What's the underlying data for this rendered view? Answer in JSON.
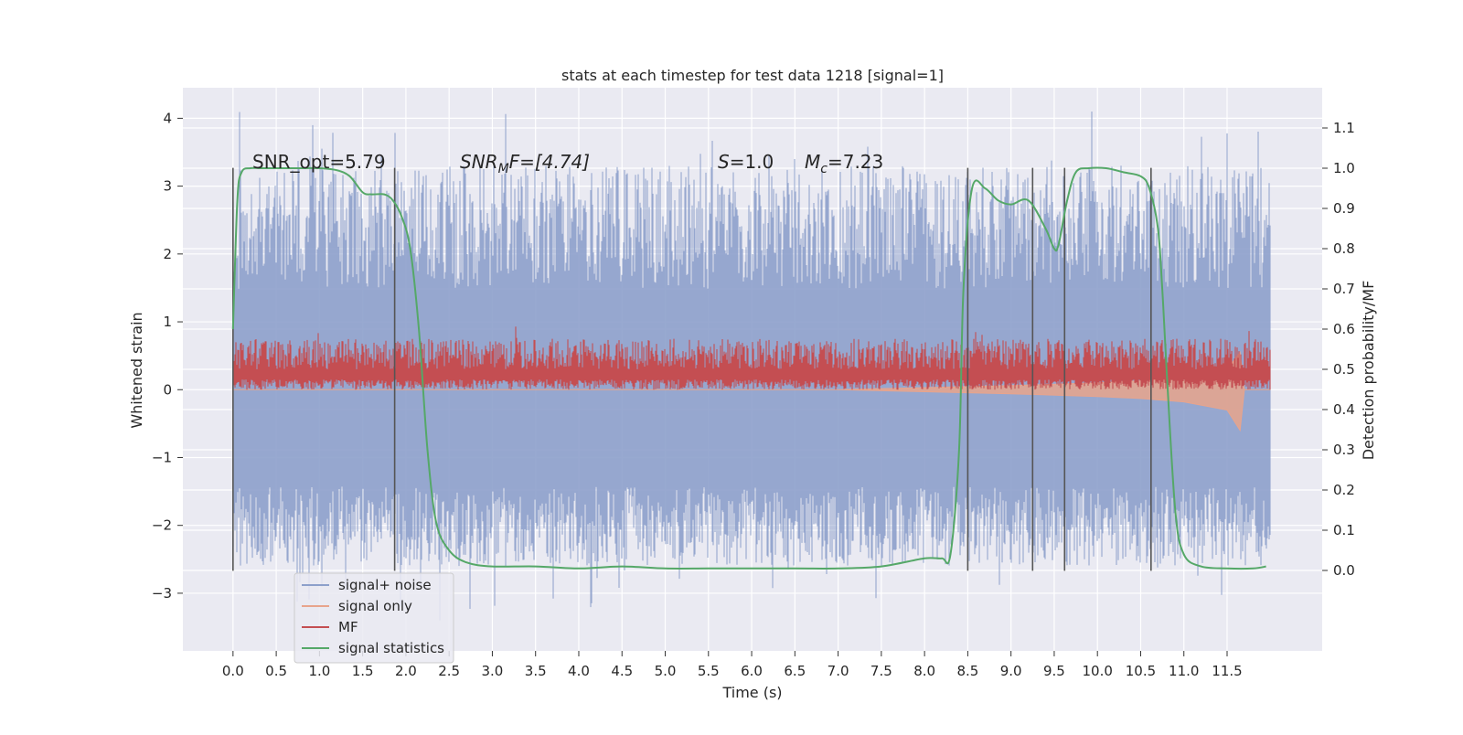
{
  "chart_data": {
    "type": "line",
    "title": "stats at each timestep for test data 1218 [signal=1]",
    "xlabel": "Time (s)",
    "ylabel_left": "Whitened strain",
    "ylabel_right": "Detection probability/MF",
    "x_ticks": [
      0.0,
      0.5,
      1.0,
      1.5,
      2.0,
      2.5,
      3.0,
      3.5,
      4.0,
      4.5,
      5.0,
      5.5,
      6.0,
      6.5,
      7.0,
      7.5,
      8.0,
      8.5,
      9.0,
      9.5,
      10.0,
      10.5,
      11.0,
      11.5
    ],
    "x_tick_labels": [
      "0.0",
      "0.5",
      "1.0",
      "1.5",
      "2.0",
      "2.5",
      "3.0",
      "3.5",
      "4.0",
      "4.5",
      "5.0",
      "5.5",
      "6.0",
      "6.5",
      "7.0",
      "7.5",
      "8.0",
      "8.5",
      "9.0",
      "9.5",
      "10.0",
      "10.5",
      "11.0",
      "11.5"
    ],
    "xlim": [
      -0.58,
      12.6
    ],
    "y_left_ticks": [
      -3,
      -2,
      -1,
      0,
      1,
      2,
      3,
      4
    ],
    "y_left_tick_labels": [
      "−3",
      "−2",
      "−1",
      "0",
      "1",
      "2",
      "3",
      "4"
    ],
    "ylim_left": [
      -3.85,
      4.45
    ],
    "y_right_ticks": [
      0.0,
      0.1,
      0.2,
      0.3,
      0.4,
      0.5,
      0.6,
      0.7,
      0.8,
      0.9,
      1.0,
      1.1
    ],
    "y_right_tick_labels": [
      "0.0",
      "0.1",
      "0.2",
      "0.3",
      "0.4",
      "0.5",
      "0.6",
      "0.7",
      "0.8",
      "0.9",
      "1.0",
      "1.1"
    ],
    "ylim_right": [
      -0.2,
      1.2
    ],
    "grid": true,
    "legend_position": "lower-left",
    "series": [
      {
        "name": "signal+ noise",
        "color": "#8da0cb",
        "axis": "left",
        "x_range": [
          0.0,
          12.0
        ],
        "approx_envelope": [
          -2.6,
          3.3
        ],
        "approx_max": 4.1,
        "approx_min": -3.5
      },
      {
        "name": "signal only",
        "color": "#e8a48c",
        "axis": "left",
        "x": [
          0.0,
          7.0,
          8.0,
          9.0,
          10.0,
          10.5,
          11.0,
          11.5,
          11.65,
          11.7,
          12.0
        ],
        "lower": [
          0.0,
          0.0,
          -0.03,
          -0.06,
          -0.1,
          -0.13,
          -0.18,
          -0.3,
          -0.6,
          0.0,
          0.0
        ],
        "upper": [
          0.0,
          0.0,
          0.03,
          0.06,
          0.1,
          0.13,
          0.18,
          0.3,
          0.55,
          0.0,
          0.0
        ]
      },
      {
        "name": "MF",
        "color": "#c44e52",
        "axis": "left",
        "x_range": [
          0.0,
          12.0
        ],
        "approx_band": [
          0.0,
          0.75
        ],
        "approx_max": 1.0
      },
      {
        "name": "signal statistics",
        "color": "#55a868",
        "axis": "right",
        "x": [
          0.0,
          0.05,
          0.1,
          0.2,
          0.3,
          0.5,
          0.8,
          1.0,
          1.2,
          1.35,
          1.5,
          1.6,
          1.75,
          1.85,
          1.95,
          2.05,
          2.15,
          2.25,
          2.35,
          2.5,
          2.7,
          3.0,
          3.5,
          4.0,
          4.5,
          5.0,
          5.5,
          6.0,
          6.5,
          7.0,
          7.5,
          8.0,
          8.2,
          8.3,
          8.4,
          8.45,
          8.55,
          8.7,
          8.85,
          9.0,
          9.2,
          9.4,
          9.5,
          9.55,
          9.65,
          9.75,
          9.9,
          10.1,
          10.3,
          10.5,
          10.6,
          10.7,
          10.75,
          10.8,
          10.9,
          11.0,
          11.2,
          11.5,
          11.8,
          11.95
        ],
        "values": [
          0.6,
          0.92,
          0.99,
          1.0,
          1.0,
          1.0,
          1.0,
          1.0,
          0.995,
          0.98,
          0.94,
          0.935,
          0.935,
          0.92,
          0.88,
          0.8,
          0.6,
          0.3,
          0.12,
          0.05,
          0.02,
          0.01,
          0.01,
          0.005,
          0.01,
          0.005,
          0.005,
          0.005,
          0.005,
          0.005,
          0.01,
          0.03,
          0.03,
          0.04,
          0.3,
          0.7,
          0.95,
          0.95,
          0.92,
          0.91,
          0.92,
          0.85,
          0.8,
          0.81,
          0.92,
          0.99,
          1.0,
          1.0,
          0.99,
          0.98,
          0.95,
          0.85,
          0.7,
          0.5,
          0.15,
          0.04,
          0.01,
          0.005,
          0.005,
          0.01
        ]
      }
    ],
    "vlines": [
      0.0,
      1.87,
      8.5,
      9.25,
      9.62,
      10.62
    ],
    "annotations": {
      "snr_opt": "SNR_opt=5.79",
      "snr_mf_main": "SNR",
      "snr_mf_sub": "M",
      "snr_mf_rest": "F=[4.74]",
      "s_main": "S",
      "s_rest": "=1.0",
      "mc_main": "M",
      "mc_sub": "c",
      "mc_rest": "=7.23"
    }
  },
  "colors": {
    "plot_background": "#eaeaf2",
    "grid": "#ffffff",
    "vline": "#555555"
  }
}
